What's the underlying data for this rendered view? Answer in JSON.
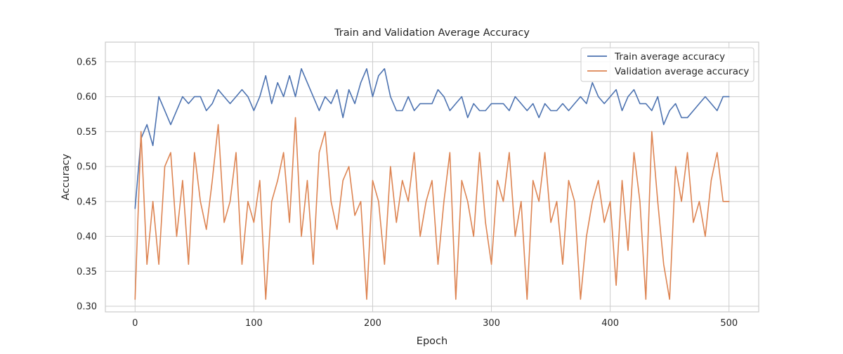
{
  "chart_data": {
    "type": "line",
    "title": "Train and Validation Average Accuracy",
    "xlabel": "Epoch",
    "ylabel": "Accuracy",
    "xlim": [
      -25,
      525
    ],
    "ylim": [
      0.292,
      0.678
    ],
    "xticks": [
      0,
      100,
      200,
      300,
      400,
      500
    ],
    "yticks": [
      0.3,
      0.35,
      0.4,
      0.45,
      0.5,
      0.55,
      0.6,
      0.65
    ],
    "grid": true,
    "legend_position": "upper right",
    "colors": {
      "train": "#4c72b0",
      "validation": "#dd8452",
      "grid": "#cccccc",
      "axes": "#cccccc"
    },
    "series": [
      {
        "name": "Train average accuracy",
        "color": "#4c72b0",
        "x_start": 0,
        "x_step": 5,
        "values": [
          0.44,
          0.54,
          0.56,
          0.53,
          0.6,
          0.58,
          0.56,
          0.58,
          0.6,
          0.59,
          0.6,
          0.6,
          0.58,
          0.59,
          0.61,
          0.6,
          0.59,
          0.6,
          0.61,
          0.6,
          0.58,
          0.6,
          0.63,
          0.59,
          0.62,
          0.6,
          0.63,
          0.6,
          0.64,
          0.62,
          0.6,
          0.58,
          0.6,
          0.59,
          0.61,
          0.57,
          0.61,
          0.59,
          0.62,
          0.64,
          0.6,
          0.63,
          0.64,
          0.6,
          0.58,
          0.58,
          0.6,
          0.58,
          0.59,
          0.59,
          0.59,
          0.61,
          0.6,
          0.58,
          0.59,
          0.6,
          0.57,
          0.59,
          0.58,
          0.58,
          0.59,
          0.59,
          0.59,
          0.58,
          0.6,
          0.59,
          0.58,
          0.59,
          0.57,
          0.59,
          0.58,
          0.58,
          0.59,
          0.58,
          0.59,
          0.6,
          0.59,
          0.62,
          0.6,
          0.59,
          0.6,
          0.61,
          0.58,
          0.6,
          0.61,
          0.59,
          0.59,
          0.58,
          0.6,
          0.56,
          0.58,
          0.59,
          0.57,
          0.57,
          0.58,
          0.59,
          0.6,
          0.59,
          0.58,
          0.6,
          0.6
        ]
      },
      {
        "name": "Validation average accuracy",
        "color": "#dd8452",
        "x_start": 0,
        "x_step": 5,
        "values": [
          0.31,
          0.55,
          0.36,
          0.45,
          0.36,
          0.5,
          0.52,
          0.4,
          0.48,
          0.36,
          0.52,
          0.45,
          0.41,
          0.48,
          0.56,
          0.42,
          0.45,
          0.52,
          0.36,
          0.45,
          0.42,
          0.48,
          0.31,
          0.45,
          0.48,
          0.52,
          0.42,
          0.57,
          0.4,
          0.48,
          0.36,
          0.52,
          0.55,
          0.45,
          0.41,
          0.48,
          0.5,
          0.43,
          0.45,
          0.31,
          0.48,
          0.45,
          0.36,
          0.5,
          0.42,
          0.48,
          0.45,
          0.52,
          0.4,
          0.45,
          0.48,
          0.36,
          0.45,
          0.52,
          0.31,
          0.48,
          0.45,
          0.4,
          0.52,
          0.42,
          0.36,
          0.48,
          0.45,
          0.52,
          0.4,
          0.45,
          0.31,
          0.48,
          0.45,
          0.52,
          0.42,
          0.45,
          0.36,
          0.48,
          0.45,
          0.31,
          0.4,
          0.45,
          0.48,
          0.42,
          0.45,
          0.33,
          0.48,
          0.38,
          0.52,
          0.45,
          0.31,
          0.55,
          0.45,
          0.36,
          0.31,
          0.5,
          0.45,
          0.52,
          0.42,
          0.45,
          0.4,
          0.48,
          0.52,
          0.45,
          0.45
        ]
      }
    ]
  }
}
